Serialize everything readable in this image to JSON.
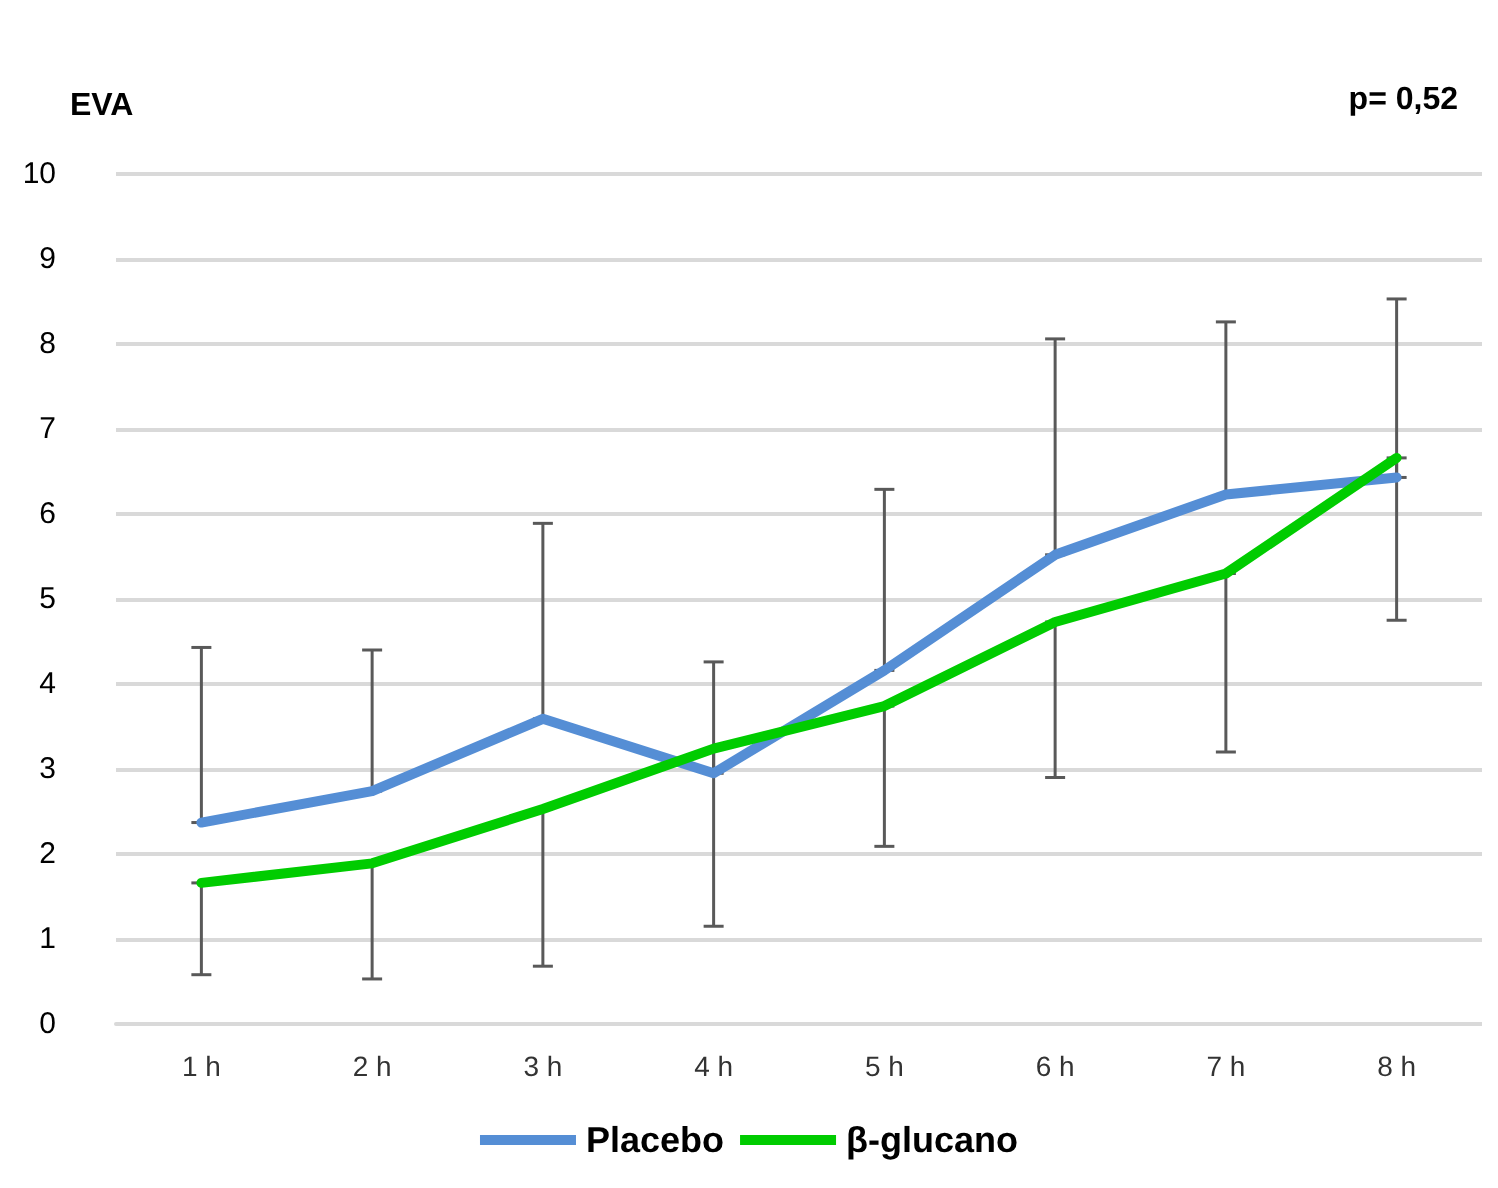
{
  "chart_data": {
    "type": "line",
    "title": "EVA",
    "annotations": [
      "p= 0,52"
    ],
    "categories": [
      "1 h",
      "2 h",
      "3 h",
      "4 h",
      "5 h",
      "6 h",
      "7 h",
      "8 h"
    ],
    "series": [
      {
        "name": "Placebo",
        "color": "#558ed5",
        "values": [
          2.37,
          2.74,
          3.59,
          2.95,
          4.16,
          5.52,
          6.23,
          6.43
        ],
        "errors": [
          [
            2.37,
            4.43
          ],
          [
            2.74,
            4.4
          ],
          [
            3.59,
            5.89
          ],
          [
            2.95,
            4.26
          ],
          [
            4.16,
            6.29
          ],
          [
            5.52,
            8.06
          ],
          [
            6.23,
            8.26
          ],
          [
            6.43,
            8.53
          ]
        ]
      },
      {
        "name": "β-glucano",
        "color": "#00cc00",
        "values": [
          1.66,
          1.89,
          2.53,
          3.24,
          3.74,
          4.73,
          5.3,
          6.66
        ],
        "errors": [
          [
            0.58,
            1.66
          ],
          [
            0.53,
            1.89
          ],
          [
            0.68,
            2.53
          ],
          [
            1.15,
            3.24
          ],
          [
            2.09,
            3.74
          ],
          [
            2.9,
            4.73
          ],
          [
            3.2,
            5.3
          ],
          [
            4.75,
            6.66
          ]
        ]
      }
    ],
    "ylim": [
      0,
      10
    ],
    "yticks": [
      0,
      1,
      2,
      3,
      4,
      5,
      6,
      7,
      8,
      9,
      10
    ],
    "grid": "y",
    "legend": "bottom",
    "marker": "none",
    "line_style": "solid"
  }
}
